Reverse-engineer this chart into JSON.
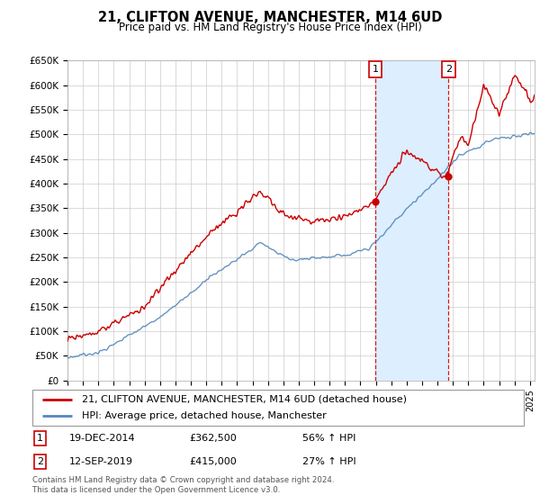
{
  "title1": "21, CLIFTON AVENUE, MANCHESTER, M14 6UD",
  "title2": "Price paid vs. HM Land Registry's House Price Index (HPI)",
  "ylabel_ticks": [
    "£0",
    "£50K",
    "£100K",
    "£150K",
    "£200K",
    "£250K",
    "£300K",
    "£350K",
    "£400K",
    "£450K",
    "£500K",
    "£550K",
    "£600K",
    "£650K"
  ],
  "ytick_vals": [
    0,
    50000,
    100000,
    150000,
    200000,
    250000,
    300000,
    350000,
    400000,
    450000,
    500000,
    550000,
    600000,
    650000
  ],
  "legend_line1": "21, CLIFTON AVENUE, MANCHESTER, M14 6UD (detached house)",
  "legend_line2": "HPI: Average price, detached house, Manchester",
  "sale1_date": "19-DEC-2014",
  "sale1_price": 362500,
  "sale1_hpi": "56% ↑ HPI",
  "sale2_date": "12-SEP-2019",
  "sale2_price": 415000,
  "sale2_hpi": "27% ↑ HPI",
  "footer": "Contains HM Land Registry data © Crown copyright and database right 2024.\nThis data is licensed under the Open Government Licence v3.0.",
  "red_color": "#cc0000",
  "blue_color": "#5588bb",
  "shade_color": "#ddeeff",
  "background_color": "#ffffff",
  "grid_color": "#cccccc",
  "sale1_year": 2014.96,
  "sale2_year": 2019.71
}
